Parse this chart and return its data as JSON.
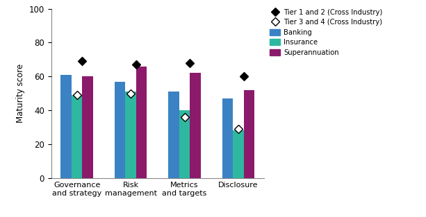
{
  "categories": [
    "Governance\nand strategy",
    "Risk\nmanagement",
    "Metrics\nand targets",
    "Disclosure"
  ],
  "banking": [
    61,
    57,
    51,
    47
  ],
  "insurance": [
    49,
    51,
    40,
    28
  ],
  "superannuation": [
    60,
    66,
    62,
    52
  ],
  "tier12": [
    69,
    67,
    68,
    60
  ],
  "tier34": [
    49,
    50,
    36,
    29
  ],
  "bar_colors": {
    "banking": "#3b82c4",
    "insurance": "#2eb8a0",
    "superannuation": "#8b1a6b"
  },
  "ylabel": "Maturity score",
  "ylim": [
    0,
    100
  ],
  "yticks": [
    0,
    20,
    40,
    60,
    80,
    100
  ],
  "background_color": "#ffffff",
  "legend_labels": [
    "Tier 1 and 2 (Cross Industry)",
    "Tier 3 and 4 (Cross Industry)",
    "Banking",
    "Insurance",
    "Superannuation"
  ]
}
